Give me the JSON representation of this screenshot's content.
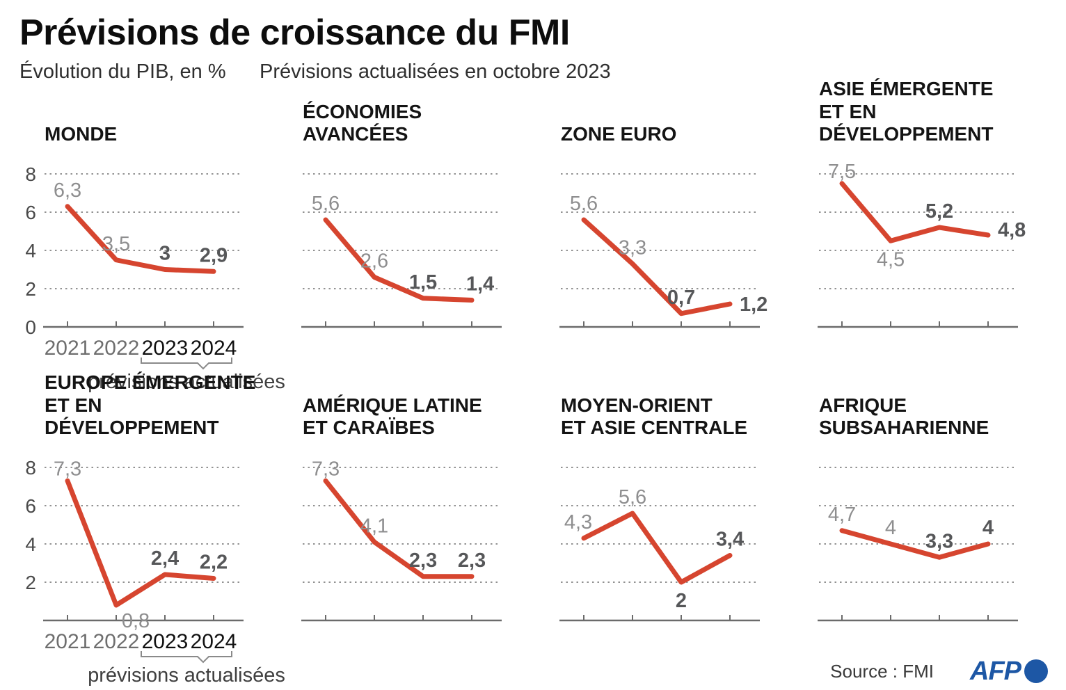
{
  "header": {
    "title": "Prévisions de croissance du FMI",
    "subtitle_left": "Évolution du PIB, en %",
    "subtitle_right": "Prévisions actualisées en octobre 2023"
  },
  "footer": {
    "source": "Source : FMI",
    "logo_text": "AFP"
  },
  "colors": {
    "line": "#d6452f",
    "grid": "#929292",
    "axis": "#6b6b6b",
    "past_value": "#8e8e8f",
    "forecast_value": "#565759",
    "year_past": "#6e6e6e",
    "year_forecast": "#101010",
    "y_tick": "#4a4a4a",
    "bracket": "#8a8a8a",
    "caption": "#3f3f3f",
    "afp_blue": "#1d57a5"
  },
  "axis": {
    "years": [
      "2021",
      "2022",
      "2023",
      "2024"
    ],
    "ymin": 0,
    "ymax": 8,
    "grid_values": [
      8,
      6,
      4,
      2
    ],
    "y_tick_values": [
      8,
      6,
      4,
      2,
      0
    ],
    "forecast_caption": "prévisions actualisées",
    "forecast_from_index": 2
  },
  "chart_data": [
    {
      "type": "line",
      "slug": "monde",
      "title_lines": [
        "MONDE"
      ],
      "x": [
        "2021",
        "2022",
        "2023",
        "2024"
      ],
      "values": [
        6.3,
        3.5,
        3,
        2.9
      ],
      "point_labels": [
        {
          "text": "6,3",
          "style": "past",
          "pos": "above"
        },
        {
          "text": "3,5",
          "style": "past",
          "pos": "above"
        },
        {
          "text": "3",
          "style": "forecast",
          "pos": "above"
        },
        {
          "text": "2,9",
          "style": "forecast",
          "pos": "above"
        }
      ],
      "y_tick_labels": [
        "8",
        "6",
        "4",
        "2",
        "0"
      ],
      "show_x_labels": true,
      "show_forecast_bracket": true,
      "ylim": [
        0,
        8
      ]
    },
    {
      "type": "line",
      "slug": "economies-avancees",
      "title_lines": [
        "ÉCONOMIES",
        "AVANCÉES"
      ],
      "x": [
        "2021",
        "2022",
        "2023",
        "2024"
      ],
      "values": [
        5.6,
        2.6,
        1.5,
        1.4
      ],
      "point_labels": [
        {
          "text": "5,6",
          "style": "past",
          "pos": "above"
        },
        {
          "text": "2,6",
          "style": "past",
          "pos": "above"
        },
        {
          "text": "1,5",
          "style": "forecast",
          "pos": "above"
        },
        {
          "text": "1,4",
          "style": "forecast",
          "pos": "above",
          "dx": 12
        }
      ],
      "y_tick_labels": [],
      "show_x_labels": false,
      "show_forecast_bracket": false,
      "ylim": [
        0,
        8
      ]
    },
    {
      "type": "line",
      "slug": "zone-euro",
      "title_lines": [
        "ZONE EURO"
      ],
      "x": [
        "2021",
        "2022",
        "2023",
        "2024"
      ],
      "values": [
        5.6,
        3.3,
        0.7,
        1.2
      ],
      "point_labels": [
        {
          "text": "5,6",
          "style": "past",
          "pos": "above"
        },
        {
          "text": "3,3",
          "style": "past",
          "pos": "above"
        },
        {
          "text": "0,7",
          "style": "forecast",
          "pos": "above"
        },
        {
          "text": "1,2",
          "style": "forecast",
          "pos": "right"
        }
      ],
      "y_tick_labels": [],
      "show_x_labels": false,
      "show_forecast_bracket": false,
      "ylim": [
        0,
        8
      ]
    },
    {
      "type": "line",
      "slug": "asie-emergente",
      "title_lines": [
        "ASIE ÉMERGENTE",
        "ET EN DÉVELOPPEMENT"
      ],
      "x": [
        "2021",
        "2022",
        "2023",
        "2024"
      ],
      "values": [
        7.5,
        4.5,
        5.2,
        4.8
      ],
      "point_labels": [
        {
          "text": "7,5",
          "style": "past",
          "pos": "above",
          "dy": 6
        },
        {
          "text": "4,5",
          "style": "past",
          "pos": "below"
        },
        {
          "text": "5,2",
          "style": "forecast",
          "pos": "above"
        },
        {
          "text": "4,8",
          "style": "forecast",
          "pos": "right",
          "dy": -8
        }
      ],
      "y_tick_labels": [],
      "show_x_labels": false,
      "show_forecast_bracket": false,
      "ylim": [
        0,
        8
      ]
    },
    {
      "type": "line",
      "slug": "europe-emergente",
      "title_lines": [
        "EUROPE ÉMERGENTE",
        "ET EN DÉVELOPPEMENT"
      ],
      "x": [
        "2021",
        "2022",
        "2023",
        "2024"
      ],
      "values": [
        7.3,
        0.8,
        2.4,
        2.2
      ],
      "point_labels": [
        {
          "text": "7,3",
          "style": "past",
          "pos": "above",
          "dy": 6
        },
        {
          "text": "0,8",
          "style": "past",
          "pos": "below",
          "dx": 28,
          "dy": -4
        },
        {
          "text": "2,4",
          "style": "forecast",
          "pos": "above"
        },
        {
          "text": "2,2",
          "style": "forecast",
          "pos": "above"
        }
      ],
      "y_tick_labels": [
        "8",
        "6",
        "4",
        "2"
      ],
      "show_x_labels": true,
      "show_forecast_bracket": true,
      "ylim": [
        0,
        8
      ]
    },
    {
      "type": "line",
      "slug": "amerique-latine",
      "title_lines": [
        "AMÉRIQUE LATINE",
        "ET CARAÏBES"
      ],
      "x": [
        "2021",
        "2022",
        "2023",
        "2024"
      ],
      "values": [
        7.3,
        4.1,
        2.3,
        2.3
      ],
      "point_labels": [
        {
          "text": "7,3",
          "style": "past",
          "pos": "above",
          "dy": 6
        },
        {
          "text": "4,1",
          "style": "past",
          "pos": "above"
        },
        {
          "text": "2,3",
          "style": "forecast",
          "pos": "above"
        },
        {
          "text": "2,3",
          "style": "forecast",
          "pos": "above"
        }
      ],
      "y_tick_labels": [],
      "show_x_labels": false,
      "show_forecast_bracket": false,
      "ylim": [
        0,
        8
      ]
    },
    {
      "type": "line",
      "slug": "moyen-orient",
      "title_lines": [
        "MOYEN-ORIENT",
        "ET ASIE CENTRALE"
      ],
      "x": [
        "2021",
        "2022",
        "2023",
        "2024"
      ],
      "values": [
        4.3,
        5.6,
        2,
        3.4
      ],
      "point_labels": [
        {
          "text": "4,3",
          "style": "past",
          "pos": "above",
          "dx": -8
        },
        {
          "text": "5,6",
          "style": "past",
          "pos": "above"
        },
        {
          "text": "2",
          "style": "forecast",
          "pos": "below"
        },
        {
          "text": "3,4",
          "style": "forecast",
          "pos": "above"
        }
      ],
      "y_tick_labels": [],
      "show_x_labels": false,
      "show_forecast_bracket": false,
      "ylim": [
        0,
        8
      ]
    },
    {
      "type": "line",
      "slug": "afrique-subsaharienne",
      "title_lines": [
        "AFRIQUE",
        "SUBSAHARIENNE"
      ],
      "x": [
        "2021",
        "2022",
        "2023",
        "2024"
      ],
      "values": [
        4.7,
        4,
        3.3,
        4
      ],
      "point_labels": [
        {
          "text": "4,7",
          "style": "past",
          "pos": "above"
        },
        {
          "text": "4",
          "style": "past",
          "pos": "above"
        },
        {
          "text": "3,3",
          "style": "forecast",
          "pos": "above"
        },
        {
          "text": "4",
          "style": "forecast",
          "pos": "above"
        }
      ],
      "y_tick_labels": [],
      "show_x_labels": false,
      "show_forecast_bracket": false,
      "ylim": [
        0,
        8
      ]
    }
  ]
}
